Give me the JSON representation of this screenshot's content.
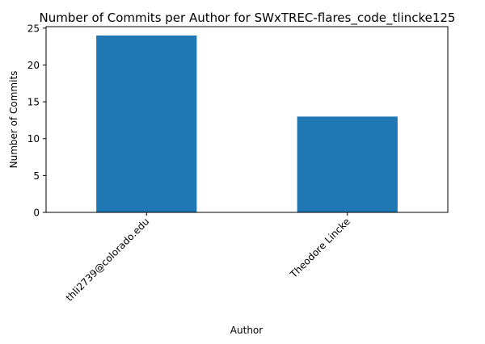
{
  "chart_data": {
    "type": "bar",
    "title": "Number of Commits per Author for SWxTREC-flares_code_tlincke125",
    "xlabel": "Author",
    "ylabel": "Number of Commits",
    "categories": [
      "thli2739@colorado.edu",
      "Theodore Lincke"
    ],
    "values": [
      24,
      13
    ],
    "ylim": [
      0,
      25.2
    ],
    "yticks": [
      0,
      5,
      10,
      15,
      20,
      25
    ],
    "grid": false,
    "bar_color": "#1f77b4"
  }
}
